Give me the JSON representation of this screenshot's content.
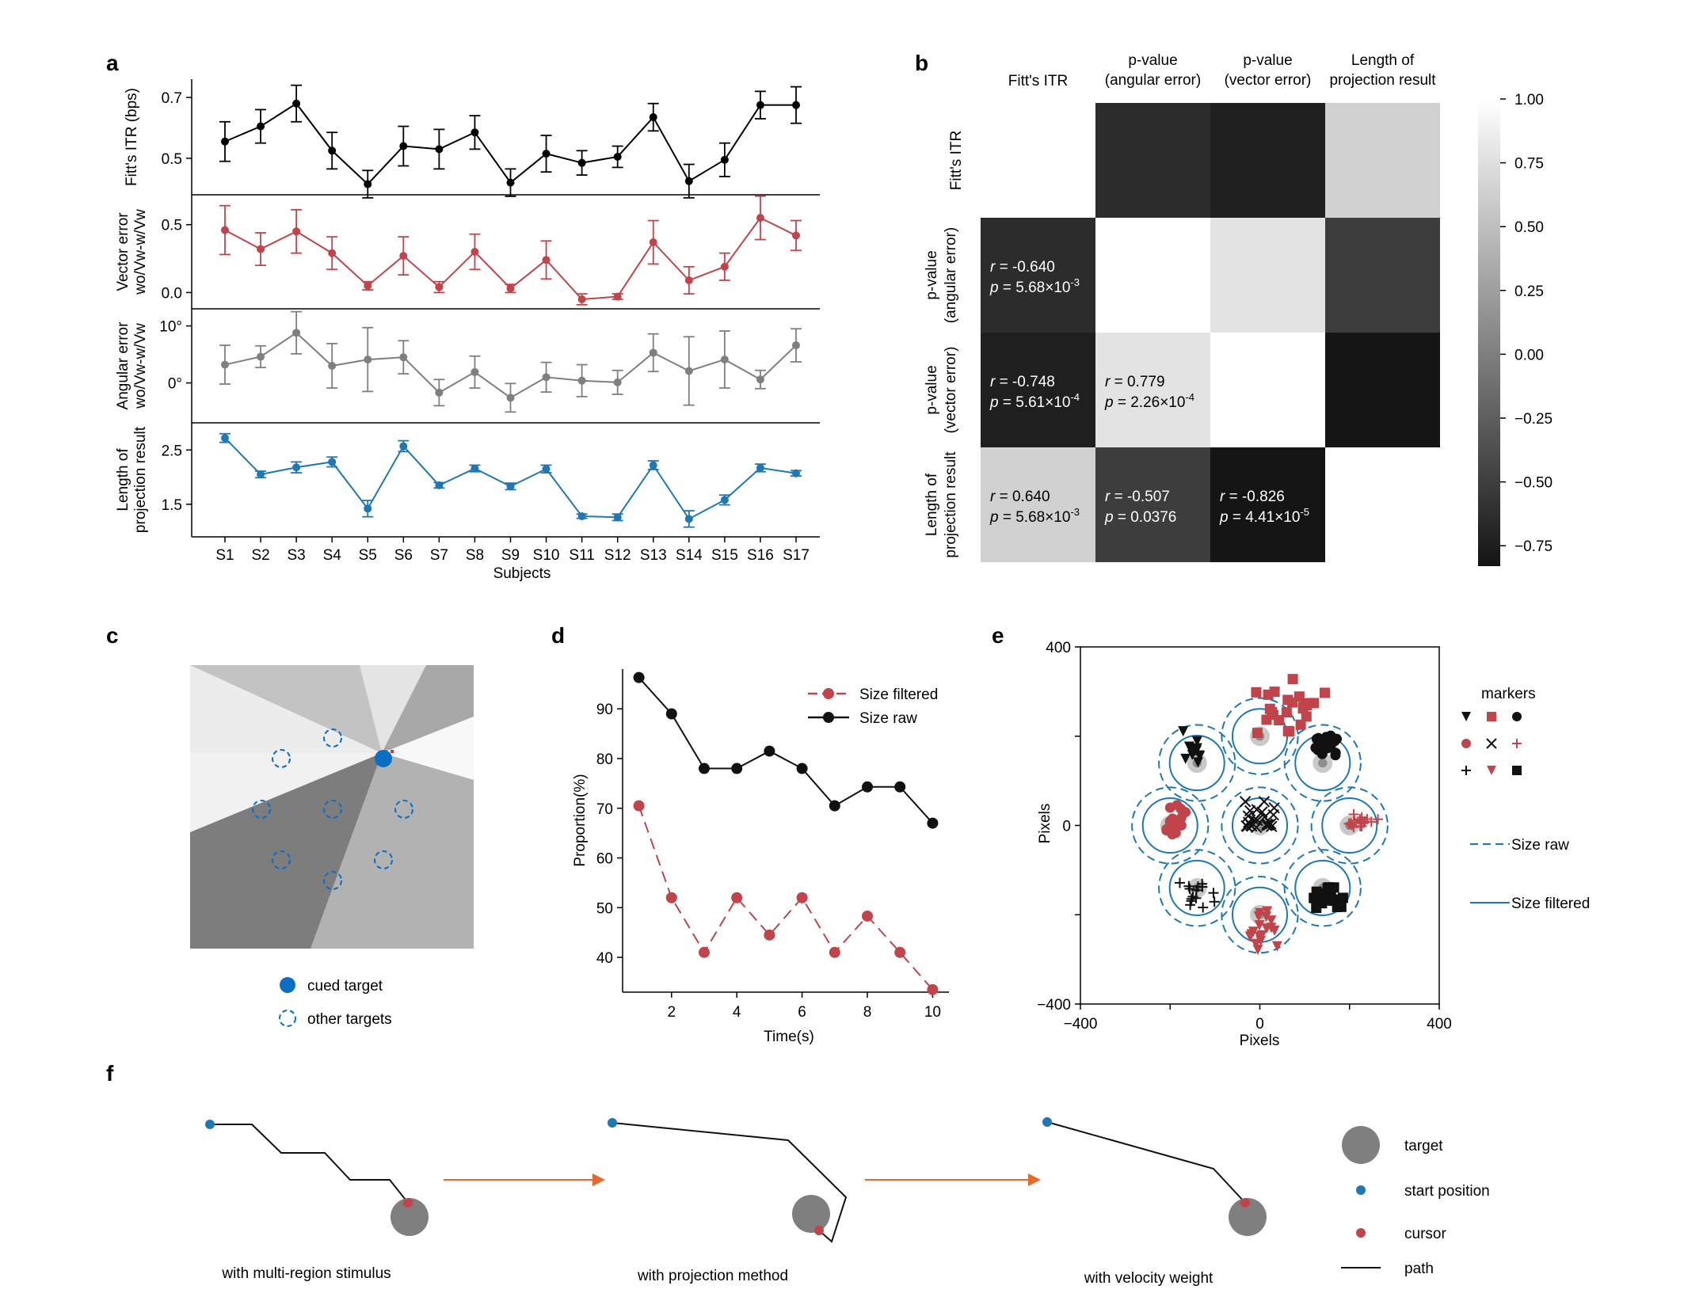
{
  "panel_labels": {
    "a": "a",
    "b": "b",
    "c": "c",
    "d": "d",
    "e": "e",
    "f": "f"
  },
  "colors": {
    "black": "#000000",
    "red": "#c0444a",
    "gray": "#7f7f7f",
    "blue": "#1f77b4",
    "bright_blue": "#0a6fc2",
    "orange": "#e8692e"
  },
  "panel_a": {
    "xlabel": "Subjects",
    "subjects": [
      "S1",
      "S2",
      "S3",
      "S4",
      "S5",
      "S6",
      "S7",
      "S8",
      "S9",
      "S10",
      "S11",
      "S12",
      "S13",
      "S14",
      "S15",
      "S16",
      "S17"
    ],
    "rows": [
      {
        "ylabel": [
          "Fitt's ITR (bps)"
        ],
        "ticks": [
          "0.5",
          "0.7"
        ],
        "tick_values": [
          0.5,
          0.7
        ],
        "ylim": [
          0.38,
          0.76
        ],
        "color": "#000000"
      },
      {
        "ylabel": [
          "Vector error",
          "wo/Vw-w/Vw"
        ],
        "ticks": [
          "0.0",
          "0.5"
        ],
        "tick_values": [
          0.0,
          0.5
        ],
        "ylim": [
          -0.12,
          0.72
        ],
        "color": "#c0444a"
      },
      {
        "ylabel": [
          "Angular error",
          "wo/Vw-w/Vw"
        ],
        "ticks": [
          "0°",
          "10°"
        ],
        "tick_values": [
          0,
          10
        ],
        "ylim": [
          -7,
          13
        ],
        "color": "#7f7f7f"
      },
      {
        "ylabel": [
          "Length of",
          "projection result"
        ],
        "ticks": [
          "1.5",
          "2.5"
        ],
        "tick_values": [
          1.5,
          2.5
        ],
        "ylim": [
          0.9,
          3.0
        ],
        "color": "#1f77b4"
      }
    ]
  },
  "panel_b": {
    "col_headers": [
      [
        "Fitt's ITR"
      ],
      [
        "p-value",
        "(angular error)"
      ],
      [
        "p-value",
        "(vector error)"
      ],
      [
        "Length of",
        "projection result"
      ]
    ],
    "row_headers": [
      [
        "Fitt's ITR"
      ],
      [
        "p-value",
        "(angular error)"
      ],
      [
        "p-value",
        "(vector error)"
      ],
      [
        "Length of",
        "projection result"
      ]
    ],
    "colorbar_ticks": [
      "1.00",
      "0.75",
      "0.50",
      "0.25",
      "0.00",
      "−0.25",
      "−0.50",
      "−0.75"
    ],
    "colorbar_tick_values": [
      1.0,
      0.75,
      0.5,
      0.25,
      0.0,
      -0.25,
      -0.5,
      -0.75
    ],
    "colorbar_range": [
      -0.83,
      1.0
    ],
    "cells_lower": [
      {
        "row": 1,
        "col": 0,
        "r": "-0.640",
        "p": "5.68×10",
        "exp": "-3"
      },
      {
        "row": 2,
        "col": 0,
        "r": "-0.748",
        "p": "5.61×10",
        "exp": "-4"
      },
      {
        "row": 2,
        "col": 1,
        "r": "0.779",
        "p": "2.26×10",
        "exp": "-4"
      },
      {
        "row": 3,
        "col": 0,
        "r": "0.640",
        "p": "5.68×10",
        "exp": "-3"
      },
      {
        "row": 3,
        "col": 1,
        "r": "-0.507",
        "p": "0.0376",
        "exp": ""
      },
      {
        "row": 3,
        "col": 2,
        "r": "-0.826",
        "p": "4.41×10",
        "exp": "-5"
      }
    ],
    "matrix": [
      [
        1.0,
        -0.64,
        -0.748,
        0.64
      ],
      [
        -0.64,
        1.0,
        0.779,
        -0.507
      ],
      [
        -0.748,
        0.779,
        1.0,
        -0.826
      ],
      [
        0.64,
        -0.507,
        -0.826,
        1.0
      ]
    ],
    "r_prefix": "r",
    "p_prefix": "p"
  },
  "panel_c": {
    "legend_cued": "cued target",
    "legend_other": "other targets"
  },
  "panel_d": {
    "xlabel": "Time(s)",
    "ylabel": "Proportion(%)",
    "x_ticks": [
      "2",
      "4",
      "6",
      "8",
      "10"
    ],
    "x_tick_values": [
      2,
      4,
      6,
      8,
      10
    ],
    "y_ticks": [
      "40",
      "50",
      "60",
      "70",
      "80",
      "90"
    ],
    "y_tick_values": [
      40,
      50,
      60,
      70,
      80,
      90
    ],
    "xlim": [
      0.5,
      10.5
    ],
    "ylim": [
      33,
      98
    ],
    "legend": [
      "Size filtered",
      "Size raw"
    ]
  },
  "chart_data": [
    {
      "type": "line",
      "panel": "a",
      "categories": [
        "S1",
        "S2",
        "S3",
        "S4",
        "S5",
        "S6",
        "S7",
        "S8",
        "S9",
        "S10",
        "S11",
        "S12",
        "S13",
        "S14",
        "S15",
        "S16",
        "S17"
      ],
      "series": [
        {
          "values": [
            0.555,
            0.605,
            0.68,
            0.525,
            0.415,
            0.54,
            0.53,
            0.585,
            0.42,
            0.515,
            0.485,
            0.505,
            0.635,
            0.425,
            0.495,
            0.675,
            0.675
          ],
          "errors": [
            0.065,
            0.055,
            0.06,
            0.06,
            0.045,
            0.065,
            0.065,
            0.055,
            0.045,
            0.06,
            0.04,
            0.035,
            0.045,
            0.055,
            0.055,
            0.045,
            0.06
          ]
        },
        {
          "values": [
            0.46,
            0.32,
            0.45,
            0.29,
            0.05,
            0.27,
            0.04,
            0.3,
            0.03,
            0.24,
            -0.05,
            -0.03,
            0.37,
            0.09,
            0.19,
            0.55,
            0.42
          ],
          "errors": [
            0.18,
            0.12,
            0.16,
            0.12,
            0.03,
            0.14,
            0.04,
            0.13,
            0.03,
            0.14,
            0.04,
            0.02,
            0.16,
            0.1,
            0.1,
            0.16,
            0.11
          ]
        },
        {
          "values": [
            3.2,
            4.6,
            8.8,
            3.0,
            4.1,
            4.5,
            -1.7,
            1.9,
            -2.6,
            1.0,
            0.4,
            0.1,
            5.3,
            2.1,
            4.1,
            0.6,
            6.6
          ],
          "errors": [
            3.4,
            1.9,
            3.7,
            3.9,
            5.6,
            2.9,
            2.3,
            2.8,
            2.5,
            2.6,
            2.8,
            2.1,
            3.3,
            6.0,
            5.0,
            1.6,
            2.9
          ]
        },
        {
          "values": [
            2.72,
            2.05,
            2.18,
            2.28,
            1.42,
            2.57,
            1.85,
            2.16,
            1.83,
            2.15,
            1.28,
            1.26,
            2.22,
            1.23,
            1.58,
            2.17,
            2.07
          ],
          "errors": [
            0.08,
            0.06,
            0.1,
            0.09,
            0.15,
            0.1,
            0.05,
            0.06,
            0.06,
            0.07,
            0.04,
            0.06,
            0.08,
            0.15,
            0.09,
            0.07,
            0.05
          ]
        }
      ]
    },
    {
      "type": "heatmap",
      "panel": "b",
      "values": [
        [
          1.0,
          -0.64,
          -0.748,
          0.64
        ],
        [
          -0.64,
          1.0,
          0.779,
          -0.507
        ],
        [
          -0.748,
          0.779,
          1.0,
          -0.826
        ],
        [
          0.64,
          -0.507,
          -0.826,
          1.0
        ]
      ]
    },
    {
      "type": "line",
      "panel": "d",
      "x": [
        1,
        2,
        3,
        4,
        5,
        6,
        7,
        8,
        9,
        10
      ],
      "series": [
        {
          "name": "Size filtered",
          "values": [
            70.5,
            52,
            41,
            52,
            44.5,
            52,
            41,
            48.3,
            41,
            33.5
          ]
        },
        {
          "name": "Size raw",
          "values": [
            96.3,
            89,
            78,
            78,
            81.5,
            78,
            70.5,
            74.3,
            74.3,
            67
          ]
        }
      ]
    },
    {
      "type": "scatter",
      "panel": "e",
      "xlabel": "Pixels",
      "ylabel": "Pixels",
      "xlim": [
        -400,
        400
      ],
      "ylim": [
        -400,
        400
      ],
      "x_ticks": [
        -400,
        0,
        400
      ],
      "y_ticks": [
        -400,
        0,
        400
      ],
      "targets": [
        [
          -140,
          140
        ],
        [
          0,
          200
        ],
        [
          140,
          140
        ],
        [
          -200,
          0
        ],
        [
          0,
          0
        ],
        [
          200,
          0
        ],
        [
          -140,
          -140
        ],
        [
          0,
          -200
        ],
        [
          140,
          -140
        ]
      ]
    }
  ],
  "panel_e": {
    "x_ticks": [
      "−400",
      "0",
      "400"
    ],
    "y_ticks": [
      "400",
      "0",
      "−400"
    ],
    "xlabel": "Pixels",
    "ylabel": "Pixels",
    "legend_title": "markers",
    "legend_raw": "Size raw",
    "legend_filtered": "Size filtered"
  },
  "panel_f": {
    "captions": [
      "with multi-region stimulus",
      "with projection method",
      "with velocity weight"
    ],
    "legend": [
      "target",
      "start position",
      "cursor",
      "path"
    ]
  }
}
